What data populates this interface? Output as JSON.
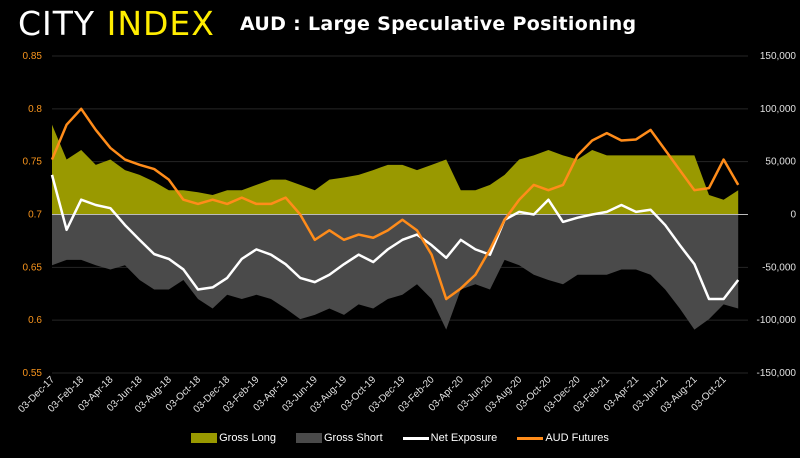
{
  "logo": {
    "part1": "CITY",
    "part2": "INDEX"
  },
  "chart_data": {
    "type": "area",
    "title": "AUD : Large Speculative Positioning",
    "x_labels": [
      "03-Dec-17",
      "03-Feb-18",
      "03-Apr-18",
      "03-Jun-18",
      "03-Aug-18",
      "03-Oct-18",
      "03-Dec-18",
      "03-Feb-19",
      "03-Apr-19",
      "03-Jun-19",
      "03-Aug-19",
      "03-Oct-19",
      "03-Dec-19",
      "03-Feb-20",
      "03-Apr-20",
      "03-Jun-20",
      "03-Aug-20",
      "03-Oct-20",
      "03-Dec-20",
      "03-Feb-21",
      "03-Apr-21",
      "03-Jun-21",
      "03-Aug-21",
      "03-Oct-21"
    ],
    "x_note": "approx. monthly samples from Dec-2017 to Nov-2021",
    "left_axis": {
      "ticks": [
        "0.85",
        "0.8",
        "0.75",
        "0.7",
        "0.65",
        "0.6",
        "0.55"
      ],
      "range": [
        0.55,
        0.85
      ],
      "color": "#f7941d"
    },
    "right_axis": {
      "ticks": [
        "150,000",
        "100,000",
        "50,000",
        "0",
        "-50,000",
        "-100,000",
        "-150,000"
      ],
      "range": [
        -150000,
        150000
      ]
    },
    "grid": true,
    "legend_position": "bottom",
    "series": [
      {
        "name": "Gross Long",
        "kind": "area",
        "axis": "right",
        "color": "#999900",
        "values": [
          85000,
          52000,
          61000,
          47000,
          52000,
          42000,
          37500,
          31000,
          23000,
          23000,
          21000,
          18500,
          23000,
          23000,
          28000,
          33000,
          33000,
          28000,
          23000,
          33000,
          35000,
          37500,
          42000,
          47000,
          47000,
          42000,
          47000,
          52000,
          23000,
          23000,
          28000,
          37500,
          52000,
          56000,
          61000,
          56000,
          52000,
          61000,
          56000,
          56000,
          56000,
          56000,
          56000,
          56000,
          56000,
          18500,
          14000,
          23000
        ]
      },
      {
        "name": "Gross Short",
        "kind": "area",
        "axis": "right",
        "color": "#4a4a4a",
        "values": [
          -48000,
          -43000,
          -43000,
          -48000,
          -52000,
          -48000,
          -62000,
          -71000,
          -71000,
          -62000,
          -80000,
          -89000,
          -76000,
          -80000,
          -76000,
          -80000,
          -89000,
          -99000,
          -95000,
          -89000,
          -95000,
          -85000,
          -89000,
          -80000,
          -76000,
          -66000,
          -80000,
          -109000,
          -71000,
          -66000,
          -71000,
          -43000,
          -48000,
          -57000,
          -62000,
          -66000,
          -57000,
          -57000,
          -57000,
          -52000,
          -52000,
          -57000,
          -71000,
          -89000,
          -109000,
          -99000,
          -85000,
          -89000
        ]
      },
      {
        "name": "Net Exposure",
        "kind": "line",
        "axis": "right",
        "color": "#ffffff",
        "values": [
          37500,
          -14500,
          14000,
          9000,
          6000,
          -10000,
          -24000,
          -37500,
          -42000,
          -52000,
          -71000,
          -69000,
          -60000,
          -42000,
          -33000,
          -38000,
          -47000,
          -60000,
          -64000,
          -57000,
          -47000,
          -38000,
          -45000,
          -33000,
          -24000,
          -19000,
          -29000,
          -41000,
          -24000,
          -33000,
          -38000,
          -5000,
          2500,
          0,
          14000,
          -7000,
          -3000,
          0,
          2500,
          9000,
          2500,
          4500,
          -10000,
          -29000,
          -47000,
          -80000,
          -80000,
          -62000
        ]
      },
      {
        "name": "AUD Futures",
        "kind": "line",
        "axis": "left",
        "color": "#ff8c1a",
        "values": [
          0.752,
          0.785,
          0.8,
          0.78,
          0.763,
          0.752,
          0.747,
          0.743,
          0.733,
          0.714,
          0.71,
          0.714,
          0.71,
          0.716,
          0.71,
          0.71,
          0.716,
          0.7,
          0.676,
          0.685,
          0.676,
          0.681,
          0.678,
          0.685,
          0.695,
          0.685,
          0.662,
          0.62,
          0.63,
          0.643,
          0.667,
          0.695,
          0.714,
          0.728,
          0.723,
          0.728,
          0.756,
          0.77,
          0.777,
          0.77,
          0.771,
          0.78,
          0.761,
          0.742,
          0.723,
          0.725,
          0.752,
          0.728
        ]
      }
    ]
  }
}
